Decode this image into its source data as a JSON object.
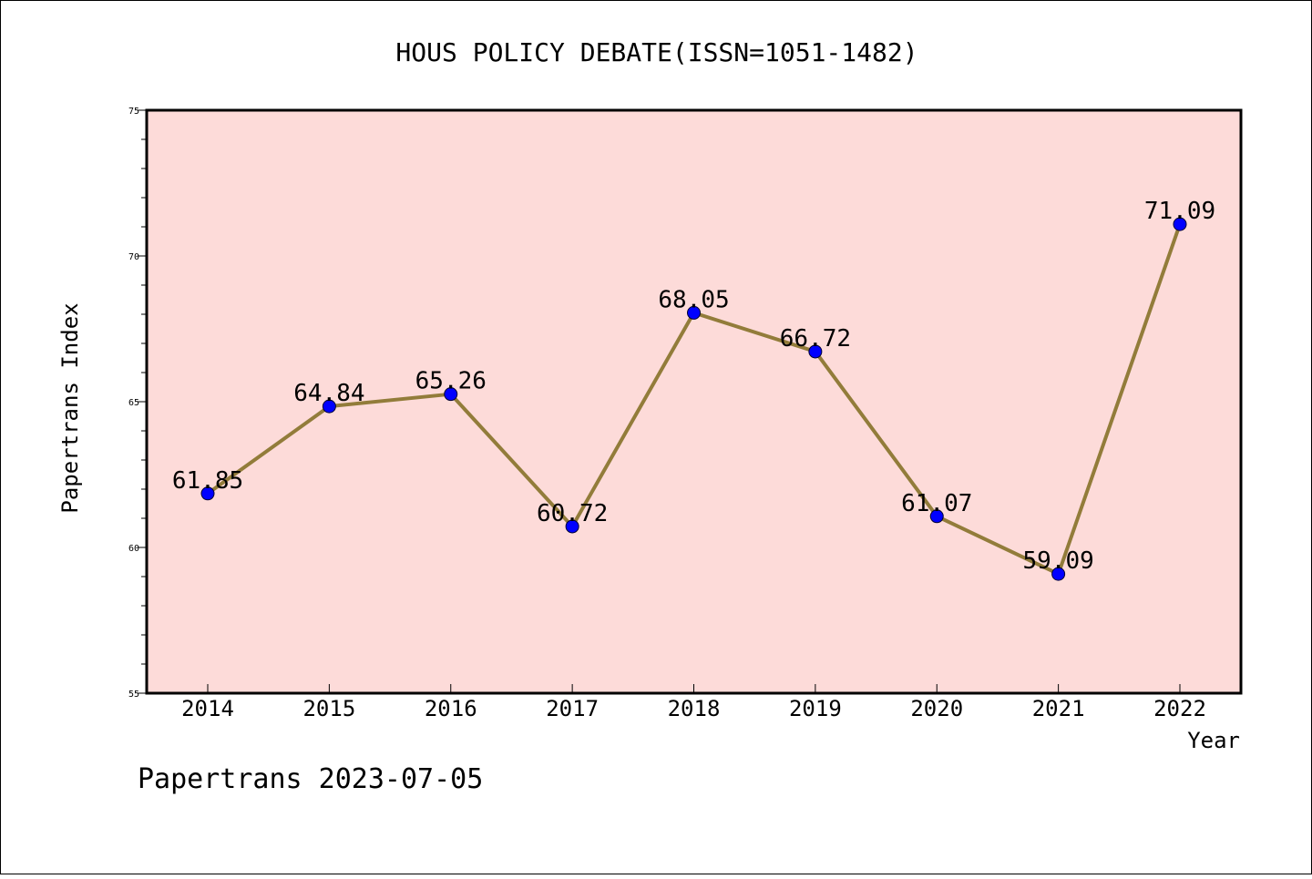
{
  "chart_data": {
    "type": "line",
    "title": "HOUS POLICY DEBATE(ISSN=1051-1482)",
    "xlabel": "Year",
    "ylabel": "Papertrans Index",
    "x": [
      "2014",
      "2015",
      "2016",
      "2017",
      "2018",
      "2019",
      "2020",
      "2021",
      "2022"
    ],
    "values": [
      61.85,
      64.84,
      65.26,
      60.72,
      68.05,
      66.72,
      61.07,
      59.09,
      71.09
    ],
    "value_labels": [
      "61.85",
      "64.84",
      "65.26",
      "60.72",
      "68.05",
      "66.72",
      "61.07",
      "59.09",
      "71.09"
    ],
    "ylim": [
      55,
      75
    ],
    "yticks": [
      "55",
      "60",
      "65",
      "70",
      "75"
    ],
    "grid": false,
    "legend": "none",
    "colors": {
      "plot_background": "#fddbd9",
      "line": "#927c3a",
      "marker": "#0000ff"
    }
  },
  "footer": {
    "text": "Papertrans 2023-07-05"
  }
}
